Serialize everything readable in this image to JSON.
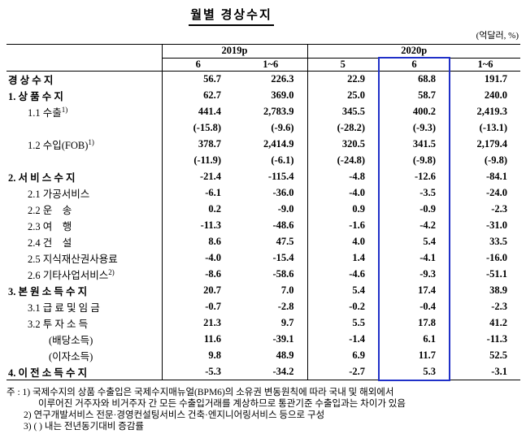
{
  "title": "월별 경상수지",
  "unit_label": "(억달러, %)",
  "colors": {
    "highlight_border": "#2030C8",
    "line": "#000000"
  },
  "table": {
    "year_groups": [
      {
        "label": "2019p",
        "span": 2
      },
      {
        "label": "2020p",
        "span": 3
      }
    ],
    "month_headers": [
      "6",
      "1~6",
      "5",
      "6",
      "1~6"
    ],
    "highlight_column": 3,
    "rows": [
      {
        "label": "경 상 수 지",
        "sup": "",
        "level": "main",
        "values": [
          "56.7",
          "226.3",
          "22.9",
          "68.8",
          "191.7"
        ]
      },
      {
        "label": "1. 상 품 수 지",
        "sup": "",
        "level": "main",
        "values": [
          "62.7",
          "369.0",
          "25.0",
          "58.7",
          "240.0"
        ]
      },
      {
        "label": "1.1 수출",
        "sup": "1)",
        "level": "sub",
        "values": [
          "441.4",
          "2,783.9",
          "345.5",
          "400.2",
          "2,419.3"
        ]
      },
      {
        "label": "",
        "sup": "",
        "level": "sub",
        "values": [
          "(-15.8)",
          "(-9.6)",
          "(-28.2)",
          "(-9.3)",
          "(-13.1)"
        ]
      },
      {
        "label": "1.2 수입(FOB)",
        "sup": "1)",
        "level": "sub",
        "values": [
          "378.7",
          "2,414.9",
          "320.5",
          "341.5",
          "2,179.4"
        ]
      },
      {
        "label": "",
        "sup": "",
        "level": "sub",
        "values": [
          "(-11.9)",
          "(-6.1)",
          "(-24.8)",
          "(-9.8)",
          "(-9.8)"
        ]
      },
      {
        "label": "2. 서 비 스 수 지",
        "sup": "",
        "level": "main",
        "values": [
          "-21.4",
          "-115.4",
          "-4.8",
          "-12.6",
          "-84.1"
        ]
      },
      {
        "label": "2.1 가공서비스",
        "sup": "",
        "level": "sub",
        "values": [
          "-6.1",
          "-36.0",
          "-4.0",
          "-3.5",
          "-24.0"
        ]
      },
      {
        "label": "2.2 운    송",
        "sup": "",
        "level": "sub",
        "values": [
          "0.2",
          "-9.0",
          "0.9",
          "-0.9",
          "-2.3"
        ]
      },
      {
        "label": "2.3 여    행",
        "sup": "",
        "level": "sub",
        "values": [
          "-11.3",
          "-48.6",
          "-1.6",
          "-4.2",
          "-31.0"
        ]
      },
      {
        "label": "2.4 건    설",
        "sup": "",
        "level": "sub",
        "values": [
          "8.6",
          "47.5",
          "4.0",
          "5.4",
          "33.5"
        ]
      },
      {
        "label": "2.5 지식재산권사용료",
        "sup": "",
        "level": "sub",
        "values": [
          "-4.0",
          "-15.4",
          "1.4",
          "-4.1",
          "-16.0"
        ]
      },
      {
        "label": "2.6 기타사업서비스",
        "sup": "2)",
        "level": "sub",
        "values": [
          "-8.6",
          "-58.6",
          "-4.6",
          "-9.3",
          "-51.1"
        ]
      },
      {
        "label": "3. 본 원 소 득 수 지",
        "sup": "",
        "level": "main",
        "values": [
          "20.7",
          "7.0",
          "5.4",
          "17.4",
          "38.9"
        ]
      },
      {
        "label": "3.1 급 료 및 임 금",
        "sup": "",
        "level": "sub",
        "values": [
          "-0.7",
          "-2.8",
          "-0.2",
          "-0.4",
          "-2.3"
        ]
      },
      {
        "label": "3.2 투 자 소 득",
        "sup": "",
        "level": "sub",
        "values": [
          "21.3",
          "9.7",
          "5.5",
          "17.8",
          "41.2"
        ]
      },
      {
        "label": "(배당소득)",
        "sup": "",
        "level": "sub2",
        "values": [
          "11.6",
          "-39.1",
          "-1.4",
          "6.1",
          "-11.3"
        ]
      },
      {
        "label": "(이자소득)",
        "sup": "",
        "level": "sub2",
        "values": [
          "9.8",
          "48.9",
          "6.9",
          "11.7",
          "52.5"
        ]
      },
      {
        "label": "4. 이 전 소 득 수 지",
        "sup": "",
        "level": "main",
        "values": [
          "-5.3",
          "-34.2",
          "-2.7",
          "5.3",
          "-3.1"
        ]
      }
    ]
  },
  "notes": {
    "lines": [
      {
        "indent": 0,
        "text": "주 : 1) 국제수지의 상품 수출입은 국제수지매뉴얼(BPM6)의 소유권 변동원칙에 따라 국내 및 해외에서"
      },
      {
        "indent": 2,
        "text": "이루어진 거주자와 비거주자 간 모든 수출입거래를 계상하므로 통관기준 수출입과는 차이가 있음"
      },
      {
        "indent": 1,
        "text": "2) 연구개발서비스 전문·경영컨설팅서비스 건축·엔지니어링서비스 등으로 구성"
      },
      {
        "indent": 1,
        "text": "3) ( ) 내는 전년동기대비 증감률"
      }
    ]
  }
}
